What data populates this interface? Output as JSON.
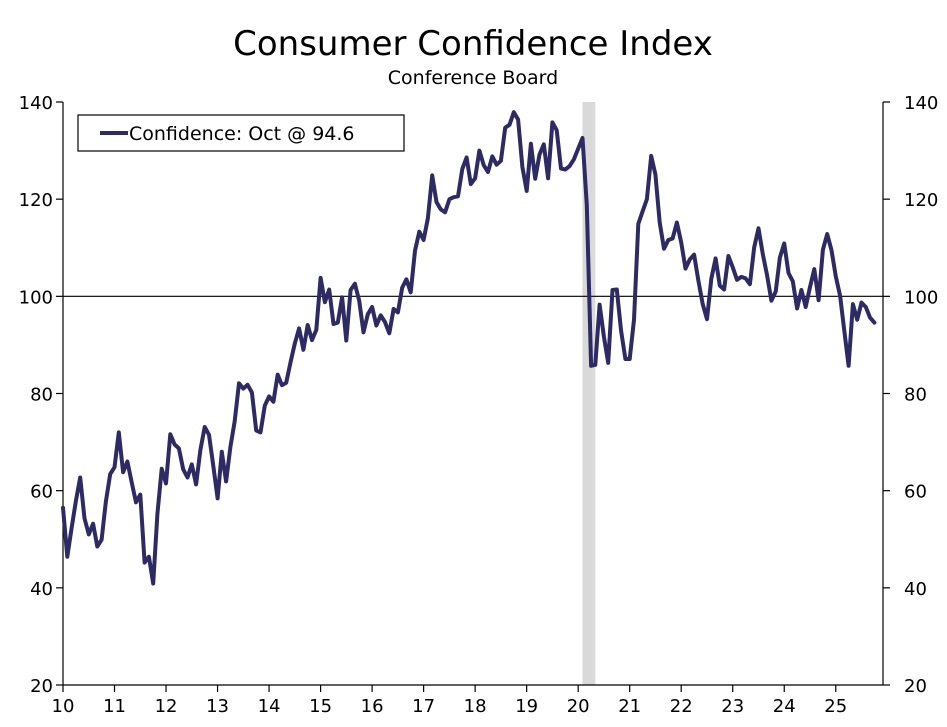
{
  "chart_data": {
    "type": "line",
    "title": "Consumer Confidence Index",
    "subtitle": "Conference Board",
    "xlabel": "",
    "ylabel": "",
    "xlim": [
      2010.0,
      2025.917
    ],
    "ylim": [
      20,
      140
    ],
    "y_ticks": [
      20,
      40,
      60,
      80,
      100,
      120,
      140
    ],
    "x_ticks": [
      {
        "value": 2010,
        "label": "10"
      },
      {
        "value": 2011,
        "label": "11"
      },
      {
        "value": 2012,
        "label": "12"
      },
      {
        "value": 2013,
        "label": "13"
      },
      {
        "value": 2014,
        "label": "14"
      },
      {
        "value": 2015,
        "label": "15"
      },
      {
        "value": 2016,
        "label": "16"
      },
      {
        "value": 2017,
        "label": "17"
      },
      {
        "value": 2018,
        "label": "18"
      },
      {
        "value": 2019,
        "label": "19"
      },
      {
        "value": 2020,
        "label": "20"
      },
      {
        "value": 2021,
        "label": "21"
      },
      {
        "value": 2022,
        "label": "22"
      },
      {
        "value": 2023,
        "label": "23"
      },
      {
        "value": 2024,
        "label": "24"
      },
      {
        "value": 2025,
        "label": "25"
      }
    ],
    "reference_line": 100,
    "recession_band": [
      2020.083,
      2020.333
    ],
    "grid": false,
    "legend_position": "top-left",
    "colors": {
      "series": "#2e2a63",
      "recession": "#d9d9d9",
      "axis": "#000000"
    },
    "series": [
      {
        "name": "Confidence: Oct @ 94.6",
        "start": "2010-01",
        "frequency": "monthly",
        "values": [
          56.5,
          46.4,
          52.3,
          57.9,
          62.7,
          54.3,
          51.0,
          53.2,
          48.5,
          49.9,
          57.8,
          63.4,
          64.8,
          72.0,
          63.8,
          66.0,
          61.7,
          57.6,
          59.2,
          45.2,
          46.4,
          40.9,
          55.2,
          64.5,
          61.5,
          71.6,
          69.5,
          68.7,
          64.4,
          62.7,
          65.4,
          61.3,
          68.4,
          73.1,
          71.5,
          65.1,
          58.4,
          68.0,
          61.9,
          69.0,
          74.3,
          82.1,
          81.0,
          81.8,
          80.2,
          72.4,
          72.0,
          77.5,
          79.4,
          78.3,
          83.9,
          81.7,
          82.2,
          86.4,
          90.3,
          93.4,
          89.0,
          94.1,
          91.0,
          93.1,
          103.8,
          98.8,
          101.4,
          94.3,
          94.6,
          99.8,
          90.9,
          101.3,
          102.6,
          99.1,
          92.6,
          96.3,
          97.8,
          94.0,
          96.1,
          94.7,
          92.4,
          97.4,
          96.7,
          101.8,
          103.5,
          100.8,
          109.4,
          113.3,
          111.6,
          116.1,
          124.9,
          119.4,
          117.9,
          117.3,
          120.0,
          120.4,
          120.6,
          126.2,
          128.6,
          123.1,
          124.3,
          130.0,
          127.0,
          125.6,
          128.8,
          127.1,
          127.9,
          134.7,
          135.3,
          137.9,
          136.4,
          126.6,
          121.7,
          131.4,
          124.2,
          129.2,
          131.3,
          124.3,
          135.8,
          134.2,
          126.3,
          126.1,
          126.8,
          128.2,
          130.4,
          132.6,
          118.8,
          85.7,
          85.9,
          98.3,
          91.7,
          86.3,
          101.3,
          101.4,
          92.9,
          87.1,
          87.1,
          95.2,
          114.9,
          117.5,
          120.0,
          128.9,
          125.1,
          115.2,
          109.8,
          111.6,
          111.9,
          115.2,
          111.1,
          105.7,
          107.6,
          108.6,
          103.2,
          98.4,
          95.3,
          103.6,
          107.8,
          102.2,
          101.4,
          108.3,
          106.0,
          103.4,
          104.0,
          103.7,
          102.5,
          110.1,
          114.0,
          108.7,
          104.3,
          99.1,
          101.0,
          108.0,
          110.9,
          104.8,
          103.1,
          97.5,
          101.3,
          97.8,
          101.9,
          105.6,
          99.2,
          109.6,
          112.8,
          109.5,
          104.1,
          100.1,
          92.9,
          85.7,
          98.4,
          95.2,
          98.7,
          97.8,
          95.6,
          94.6
        ]
      }
    ]
  }
}
